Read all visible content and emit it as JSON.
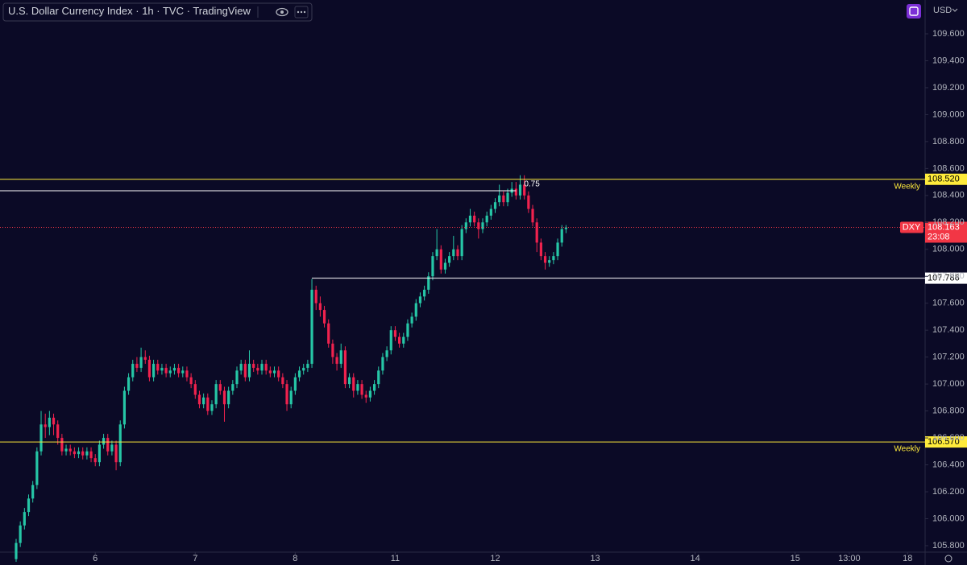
{
  "header": {
    "title": "U.S. Dollar Currency Index",
    "interval": "1h",
    "source": "TVC",
    "platform": "TradingView"
  },
  "chart_data": {
    "type": "candlestick",
    "currency": "USD",
    "up_color": "#26c6a6",
    "down_color": "#f0224e",
    "xlim": [
      -3.87,
      218.2
    ],
    "xticks": [
      {
        "value": 19,
        "label": "6"
      },
      {
        "value": 43,
        "label": "7"
      },
      {
        "value": 67,
        "label": "8"
      },
      {
        "value": 91,
        "label": "11"
      },
      {
        "value": 115,
        "label": "12"
      },
      {
        "value": 139,
        "label": "13"
      },
      {
        "value": 163,
        "label": "14"
      },
      {
        "value": 187,
        "label": "15"
      },
      {
        "value": 200,
        "label": "13:00"
      },
      {
        "value": 214,
        "label": "18"
      }
    ],
    "ylim": [
      105.752,
      109.851
    ],
    "yticks": [
      {
        "value": 105.8,
        "label": "105.800"
      },
      {
        "value": 106.0,
        "label": "106.000"
      },
      {
        "value": 106.2,
        "label": "106.200"
      },
      {
        "value": 106.4,
        "label": "106.400"
      },
      {
        "value": 106.6,
        "label": "106.600"
      },
      {
        "value": 106.8,
        "label": "106.800"
      },
      {
        "value": 107.0,
        "label": "107.000"
      },
      {
        "value": 107.2,
        "label": "107.200"
      },
      {
        "value": 107.4,
        "label": "107.400"
      },
      {
        "value": 107.6,
        "label": "107.600"
      },
      {
        "value": 107.8,
        "label": "107.800"
      },
      {
        "value": 108.0,
        "label": "108.000"
      },
      {
        "value": 108.2,
        "label": "108.200"
      },
      {
        "value": 108.4,
        "label": "108.400"
      },
      {
        "value": 108.6,
        "label": "108.600"
      },
      {
        "value": 108.8,
        "label": "108.800"
      },
      {
        "value": 109.0,
        "label": "109.000"
      },
      {
        "value": 109.2,
        "label": "109.200"
      },
      {
        "value": 109.4,
        "label": "109.400"
      },
      {
        "value": 109.6,
        "label": "109.600"
      }
    ],
    "levels": [
      {
        "value": 108.52,
        "label": "108.520",
        "text": "Weekly",
        "color": "#ffeb3b"
      },
      {
        "value": 106.57,
        "label": "106.570",
        "text": "Weekly",
        "color": "#ffeb3b"
      },
      {
        "value": 107.786,
        "label": "107.786",
        "color": "#ffffff",
        "x_start": 71
      }
    ],
    "fib_level": {
      "value": 108.435,
      "label": "0.75",
      "x_end": 120
    },
    "last_price": {
      "symbol": "DXY",
      "value": 108.163,
      "countdown": "23:08",
      "color": "#f23645"
    },
    "candles": [
      [
        105.7,
        105.85,
        105.68,
        105.82
      ],
      [
        105.82,
        105.98,
        105.79,
        105.95
      ],
      [
        105.95,
        106.08,
        105.92,
        106.05
      ],
      [
        106.05,
        106.18,
        106.02,
        106.15
      ],
      [
        106.15,
        106.28,
        106.12,
        106.25
      ],
      [
        106.25,
        106.53,
        106.22,
        106.5
      ],
      [
        106.5,
        106.8,
        106.47,
        106.7
      ],
      [
        106.7,
        106.78,
        106.6,
        106.68
      ],
      [
        106.68,
        106.8,
        106.62,
        106.75
      ],
      [
        106.75,
        106.78,
        106.62,
        106.7
      ],
      [
        106.7,
        106.73,
        106.55,
        106.6
      ],
      [
        106.6,
        106.63,
        106.47,
        106.5
      ],
      [
        106.5,
        106.55,
        106.47,
        106.52
      ],
      [
        106.52,
        106.55,
        106.47,
        106.5
      ],
      [
        106.5,
        106.53,
        106.45,
        106.48
      ],
      [
        106.48,
        106.53,
        106.45,
        106.5
      ],
      [
        106.5,
        106.53,
        106.44,
        106.47
      ],
      [
        106.47,
        106.53,
        106.44,
        106.5
      ],
      [
        106.5,
        106.53,
        106.42,
        106.45
      ],
      [
        106.45,
        106.48,
        106.39,
        106.42
      ],
      [
        106.42,
        106.58,
        106.39,
        106.55
      ],
      [
        106.55,
        106.63,
        106.52,
        106.6
      ],
      [
        106.6,
        106.63,
        106.47,
        106.5
      ],
      [
        106.5,
        106.58,
        106.47,
        106.55
      ],
      [
        106.55,
        106.58,
        106.36,
        106.42
      ],
      [
        106.42,
        106.73,
        106.39,
        106.7
      ],
      [
        106.7,
        106.98,
        106.67,
        106.95
      ],
      [
        106.95,
        107.08,
        106.92,
        107.05
      ],
      [
        107.05,
        107.18,
        107.02,
        107.15
      ],
      [
        107.15,
        107.2,
        107.09,
        107.12
      ],
      [
        107.12,
        107.27,
        107.09,
        107.2
      ],
      [
        107.2,
        107.25,
        107.15,
        107.18
      ],
      [
        107.18,
        107.21,
        107.02,
        107.05
      ],
      [
        107.05,
        107.18,
        107.02,
        107.15
      ],
      [
        107.15,
        107.18,
        107.07,
        107.1
      ],
      [
        107.1,
        107.15,
        107.07,
        107.12
      ],
      [
        107.12,
        107.15,
        107.05,
        107.08
      ],
      [
        107.08,
        107.13,
        107.05,
        107.1
      ],
      [
        107.1,
        107.15,
        107.07,
        107.12
      ],
      [
        107.12,
        107.15,
        107.05,
        107.08
      ],
      [
        107.08,
        107.13,
        107.05,
        107.1
      ],
      [
        107.1,
        107.13,
        107.02,
        107.05
      ],
      [
        107.05,
        107.08,
        106.97,
        107.0
      ],
      [
        107.0,
        107.03,
        106.89,
        106.92
      ],
      [
        106.92,
        106.95,
        106.82,
        106.85
      ],
      [
        106.85,
        106.93,
        106.82,
        106.9
      ],
      [
        106.9,
        106.93,
        106.77,
        106.8
      ],
      [
        106.8,
        106.88,
        106.77,
        106.85
      ],
      [
        106.85,
        107.03,
        106.82,
        107.0
      ],
      [
        107.0,
        107.03,
        106.92,
        106.95
      ],
      [
        106.95,
        106.98,
        106.72,
        106.85
      ],
      [
        106.85,
        106.98,
        106.82,
        106.95
      ],
      [
        106.95,
        107.03,
        106.92,
        107.0
      ],
      [
        107.0,
        107.13,
        106.97,
        107.1
      ],
      [
        107.1,
        107.18,
        107.07,
        107.15
      ],
      [
        107.15,
        107.18,
        107.02,
        107.05
      ],
      [
        107.05,
        107.25,
        107.02,
        107.15
      ],
      [
        107.15,
        107.18,
        107.09,
        107.12
      ],
      [
        107.12,
        107.15,
        107.07,
        107.1
      ],
      [
        107.1,
        107.18,
        107.07,
        107.15
      ],
      [
        107.15,
        107.18,
        107.07,
        107.1
      ],
      [
        107.1,
        107.13,
        107.05,
        107.08
      ],
      [
        107.08,
        107.13,
        107.05,
        107.1
      ],
      [
        107.1,
        107.13,
        107.02,
        107.05
      ],
      [
        107.05,
        107.08,
        106.97,
        107.0
      ],
      [
        107.0,
        107.03,
        106.8,
        106.85
      ],
      [
        106.85,
        106.98,
        106.82,
        106.95
      ],
      [
        106.95,
        107.08,
        106.92,
        107.05
      ],
      [
        107.05,
        107.13,
        107.02,
        107.1
      ],
      [
        107.1,
        107.15,
        107.07,
        107.12
      ],
      [
        107.12,
        107.18,
        107.09,
        107.15
      ],
      [
        107.15,
        107.78,
        107.12,
        107.7
      ],
      [
        107.7,
        107.73,
        107.55,
        107.6
      ],
      [
        107.6,
        107.65,
        107.5,
        107.55
      ],
      [
        107.55,
        107.58,
        107.42,
        107.45
      ],
      [
        107.45,
        107.48,
        107.27,
        107.3
      ],
      [
        107.3,
        107.33,
        107.15,
        107.2
      ],
      [
        107.2,
        107.23,
        107.1,
        107.15
      ],
      [
        107.15,
        107.3,
        107.12,
        107.25
      ],
      [
        107.25,
        107.28,
        106.97,
        107.0
      ],
      [
        107.0,
        107.08,
        106.97,
        107.05
      ],
      [
        107.05,
        107.08,
        106.9,
        106.95
      ],
      [
        106.95,
        107.03,
        106.92,
        107.0
      ],
      [
        107.0,
        107.03,
        106.89,
        106.92
      ],
      [
        106.92,
        106.95,
        106.86,
        106.9
      ],
      [
        106.9,
        106.98,
        106.87,
        106.95
      ],
      [
        106.95,
        107.03,
        106.92,
        107.0
      ],
      [
        107.0,
        107.13,
        106.97,
        107.1
      ],
      [
        107.1,
        107.23,
        107.07,
        107.2
      ],
      [
        107.2,
        107.28,
        107.17,
        107.25
      ],
      [
        107.25,
        107.43,
        107.22,
        107.4
      ],
      [
        107.4,
        107.43,
        107.32,
        107.35
      ],
      [
        107.35,
        107.38,
        107.27,
        107.3
      ],
      [
        107.3,
        107.38,
        107.27,
        107.35
      ],
      [
        107.35,
        107.48,
        107.32,
        107.45
      ],
      [
        107.45,
        107.53,
        107.42,
        107.5
      ],
      [
        107.5,
        107.63,
        107.47,
        107.6
      ],
      [
        107.6,
        107.68,
        107.57,
        107.65
      ],
      [
        107.65,
        107.73,
        107.62,
        107.7
      ],
      [
        107.7,
        107.83,
        107.67,
        107.8
      ],
      [
        107.8,
        107.98,
        107.77,
        107.95
      ],
      [
        107.95,
        108.15,
        107.92,
        108.0
      ],
      [
        108.0,
        108.03,
        107.82,
        107.85
      ],
      [
        107.85,
        107.93,
        107.82,
        107.9
      ],
      [
        107.9,
        107.98,
        107.87,
        107.95
      ],
      [
        107.95,
        108.1,
        107.92,
        108.0
      ],
      [
        108.0,
        108.03,
        107.92,
        107.95
      ],
      [
        107.95,
        108.18,
        107.92,
        108.15
      ],
      [
        108.15,
        108.23,
        108.12,
        108.2
      ],
      [
        108.2,
        108.3,
        108.17,
        108.25
      ],
      [
        108.25,
        108.28,
        108.17,
        108.2
      ],
      [
        108.2,
        108.23,
        108.08,
        108.15
      ],
      [
        108.15,
        108.23,
        108.12,
        108.2
      ],
      [
        108.2,
        108.28,
        108.17,
        108.25
      ],
      [
        108.25,
        108.33,
        108.22,
        108.3
      ],
      [
        108.3,
        108.38,
        108.27,
        108.35
      ],
      [
        108.35,
        108.48,
        108.32,
        108.4
      ],
      [
        108.4,
        108.43,
        108.32,
        108.35
      ],
      [
        108.35,
        108.45,
        108.32,
        108.42
      ],
      [
        108.42,
        108.5,
        108.39,
        108.45
      ],
      [
        108.45,
        108.5,
        108.37,
        108.4
      ],
      [
        108.4,
        108.55,
        108.37,
        108.48
      ],
      [
        108.48,
        108.55,
        108.37,
        108.4
      ],
      [
        108.4,
        108.43,
        108.27,
        108.3
      ],
      [
        108.3,
        108.33,
        108.17,
        108.2
      ],
      [
        108.2,
        108.23,
        107.98,
        108.05
      ],
      [
        108.05,
        108.08,
        107.92,
        107.95
      ],
      [
        107.95,
        107.98,
        107.85,
        107.9
      ],
      [
        107.9,
        107.95,
        107.87,
        107.92
      ],
      [
        107.92,
        107.98,
        107.89,
        107.95
      ],
      [
        107.95,
        108.08,
        107.92,
        108.05
      ],
      [
        108.05,
        108.18,
        108.02,
        108.15
      ],
      [
        108.15,
        108.18,
        108.12,
        108.163
      ]
    ]
  }
}
